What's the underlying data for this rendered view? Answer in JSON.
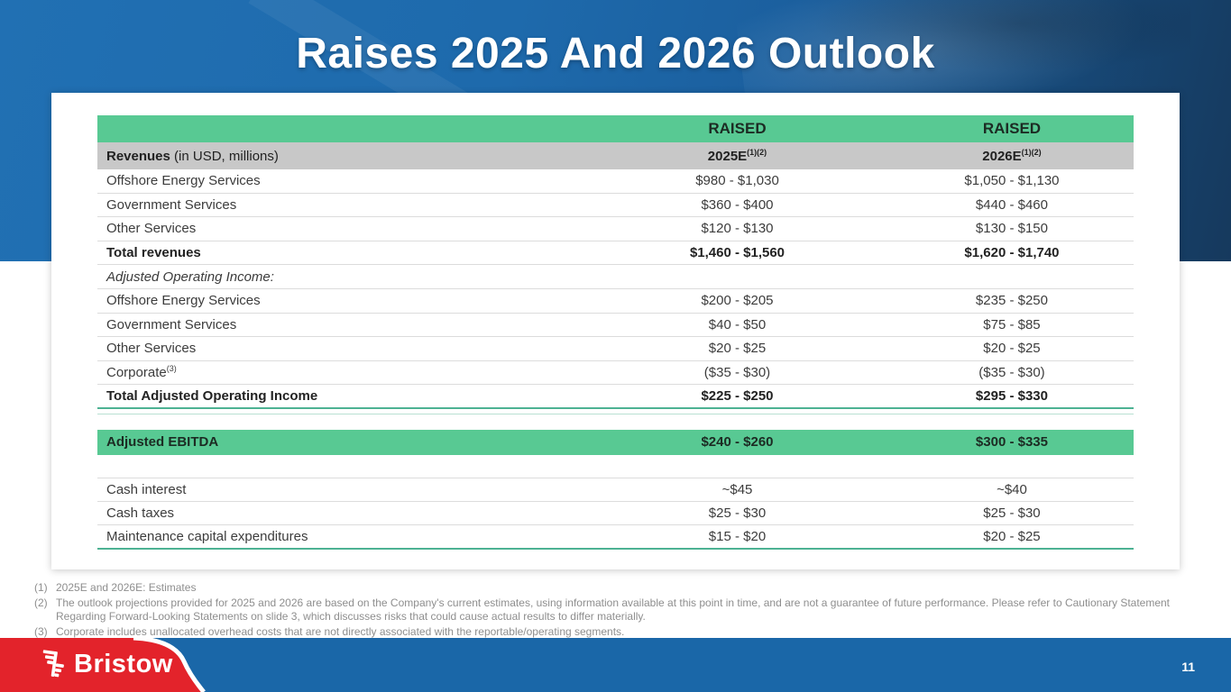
{
  "slide": {
    "title": "Raises 2025 And 2026 Outlook",
    "page_number": "11",
    "brand_name": "Bristow"
  },
  "table": {
    "header": {
      "col_2025": "RAISED",
      "col_2026": "RAISED"
    },
    "subheader": {
      "label_bold": "Revenues",
      "label_rest": " (in USD, millions)",
      "col_2025": "2025E",
      "col_2025_sup": "(1)(2)",
      "col_2026": "2026E",
      "col_2026_sup": "(1)(2)"
    },
    "rows": [
      {
        "label": "Offshore Energy Services",
        "v2025": "$980 - $1,030",
        "v2026": "$1,050 - $1,130"
      },
      {
        "label": "Government Services",
        "v2025": "$360 - $400",
        "v2026": "$440 - $460"
      },
      {
        "label": "Other Services",
        "v2025": "$120 - $130",
        "v2026": "$130 - $150"
      },
      {
        "label": "Total revenues",
        "v2025": "$1,460 - $1,560",
        "v2026": "$1,620 - $1,740",
        "bold": true
      },
      {
        "label": "Adjusted Operating Income:",
        "v2025": "",
        "v2026": "",
        "italic": true
      },
      {
        "label": "Offshore Energy Services",
        "v2025": "$200 - $205",
        "v2026": "$235 - $250"
      },
      {
        "label": "Government Services",
        "v2025": "$40 - $50",
        "v2026": "$75 - $85"
      },
      {
        "label": "Other Services",
        "v2025": "$20 - $25",
        "v2026": "$20 - $25"
      },
      {
        "label": "Corporate",
        "label_sup": "(3)",
        "v2025": "($35 - $30)",
        "v2026": "($35 - $30)"
      },
      {
        "label": "Total Adjusted Operating Income",
        "v2025": "$225 - $250",
        "v2026": "$295 - $330",
        "bold": true,
        "green_bottom": true
      },
      {
        "spacer": true,
        "height": 6,
        "line": true
      },
      {
        "spacer": true,
        "height": 17
      },
      {
        "label": "Adjusted EBITDA",
        "v2025": "$240 - $260",
        "v2026": "$300 - $335",
        "bold": true,
        "highlight": true
      },
      {
        "spacer": true,
        "height": 25
      },
      {
        "label": "Cash interest",
        "v2025": "~$45",
        "v2026": "~$40",
        "top_border": true
      },
      {
        "label": "Cash taxes",
        "v2025": "$25 - $30",
        "v2026": "$25 - $30"
      },
      {
        "label": "Maintenance capital expenditures",
        "v2025": "$15 - $20",
        "v2026": "$20 - $25",
        "green_bottom": true
      }
    ]
  },
  "footnotes": [
    {
      "num": "(1)",
      "text": "2025E and 2026E: Estimates"
    },
    {
      "num": "(2)",
      "text": "The outlook projections provided for 2025 and 2026 are based on the Company's current estimates, using information available at this point in time, and are not a guarantee of future performance. Please refer to Cautionary Statement Regarding Forward-Looking Statements on slide 3, which discusses risks that could cause actual results to differ materially."
    },
    {
      "num": "(3)",
      "text": "Corporate includes unallocated overhead costs that are not directly associated with the reportable/operating segments."
    }
  ],
  "colors": {
    "header_green": "#58c993",
    "subheader_gray": "#c8c8c8",
    "accent_teal_line": "#4db293",
    "hero_blue": "#1e6aac",
    "footer_blue": "#1a67a8",
    "logo_red": "#e3232b"
  }
}
